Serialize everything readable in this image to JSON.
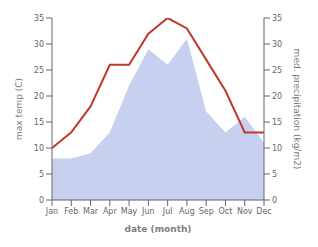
{
  "chart_data": {
    "type": "line",
    "categories": [
      "Jan",
      "Feb",
      "Mar",
      "Apr",
      "May",
      "Jun",
      "Jul",
      "Aug",
      "Sep",
      "Oct",
      "Nov",
      "Dec"
    ],
    "xlabel": "date (month)",
    "ylabel": "max temp (C)",
    "y2label": "med. precipitation (kg/m2)",
    "series": [
      {
        "type": "area",
        "axis": "y2",
        "color": "#c8d0f0",
        "values": [
          8,
          8,
          9,
          13,
          22,
          29,
          26,
          31,
          17,
          13,
          16,
          11
        ]
      },
      {
        "type": "line",
        "color": "#c0392b",
        "values": [
          10,
          13,
          18,
          26,
          26,
          32,
          35,
          33,
          27,
          21,
          13,
          13
        ]
      }
    ],
    "ylim": [
      0,
      35
    ],
    "yticks": [
      0,
      5,
      10,
      15,
      20,
      25,
      30,
      35
    ],
    "y2lim": [
      0,
      35
    ],
    "y2ticks": [
      0,
      5,
      10,
      15,
      20,
      25,
      30,
      35
    ],
    "grid": false
  }
}
